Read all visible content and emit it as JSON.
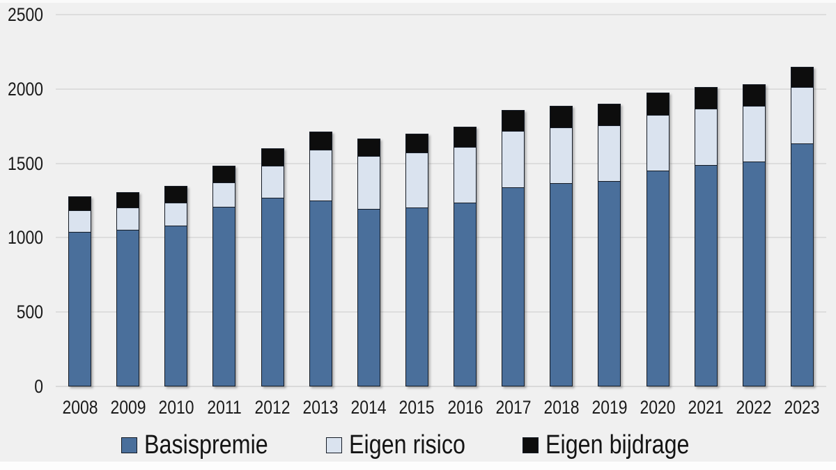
{
  "chart_data": {
    "type": "bar",
    "stacked": true,
    "title": "",
    "xlabel": "",
    "ylabel": "",
    "categories": [
      "2008",
      "2009",
      "2010",
      "2011",
      "2012",
      "2013",
      "2014",
      "2015",
      "2016",
      "2017",
      "2018",
      "2019",
      "2020",
      "2021",
      "2022",
      "2023"
    ],
    "series": [
      {
        "name": "Basispremie",
        "color": "#4a6f9b",
        "values": [
          1040,
          1055,
          1080,
          1210,
          1270,
          1250,
          1195,
          1205,
          1235,
          1340,
          1365,
          1380,
          1450,
          1490,
          1510,
          1635
        ]
      },
      {
        "name": "Eigen risico",
        "color": "#dae3ef",
        "values": [
          150,
          155,
          165,
          170,
          220,
          350,
          360,
          375,
          385,
          385,
          385,
          385,
          385,
          385,
          385,
          385
        ]
      },
      {
        "name": "Eigen bijdrage",
        "color": "#0d0d0d",
        "values": [
          105,
          110,
          120,
          118,
          125,
          130,
          125,
          135,
          140,
          148,
          150,
          150,
          155,
          153,
          150,
          145
        ]
      }
    ],
    "ylim": [
      0,
      2500
    ],
    "yticks": [
      0,
      500,
      1000,
      1500,
      2000,
      2500
    ],
    "grid": true,
    "legend_position": "bottom",
    "colors": {
      "background": "#f0f0f0",
      "gridline": "#dddddd",
      "bar_border": "#141a24",
      "text": "#1a1a1a"
    }
  }
}
